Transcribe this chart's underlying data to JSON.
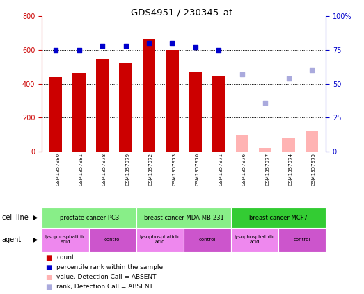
{
  "title": "GDS4951 / 230345_at",
  "samples": [
    "GSM1357980",
    "GSM1357981",
    "GSM1357978",
    "GSM1357979",
    "GSM1357972",
    "GSM1357973",
    "GSM1357970",
    "GSM1357971",
    "GSM1357976",
    "GSM1357977",
    "GSM1357974",
    "GSM1357975"
  ],
  "count_values": [
    440,
    463,
    545,
    520,
    667,
    600,
    473,
    447,
    null,
    null,
    null,
    null
  ],
  "count_absent": [
    null,
    null,
    null,
    null,
    null,
    null,
    null,
    null,
    100,
    20,
    80,
    120
  ],
  "rank_values": [
    75,
    75,
    78,
    78,
    80,
    80,
    77,
    75,
    null,
    null,
    null,
    null
  ],
  "rank_absent": [
    null,
    null,
    null,
    null,
    null,
    null,
    null,
    null,
    57,
    36,
    54,
    60
  ],
  "ylim_left": [
    0,
    800
  ],
  "ylim_right": [
    0,
    100
  ],
  "yticks_left": [
    0,
    200,
    400,
    600,
    800
  ],
  "yticks_right": [
    0,
    25,
    50,
    75,
    100
  ],
  "ytick_labels_right": [
    "0",
    "25",
    "50",
    "75",
    "100%"
  ],
  "bar_color_present": "#cc0000",
  "bar_color_absent": "#ffb3b3",
  "dot_color_present": "#0000cc",
  "dot_color_absent": "#aaaadd",
  "cell_line_groups": [
    {
      "label": "prostate cancer PC3",
      "start": 0,
      "end": 4,
      "color": "#88ee88"
    },
    {
      "label": "breast cancer MDA-MB-231",
      "start": 4,
      "end": 8,
      "color": "#88ee88"
    },
    {
      "label": "breast cancer MCF7",
      "start": 8,
      "end": 12,
      "color": "#33cc33"
    }
  ],
  "agent_groups": [
    {
      "label": "lysophosphatidic\nacid",
      "start": 0,
      "end": 2,
      "color": "#ee88ee"
    },
    {
      "label": "control",
      "start": 2,
      "end": 4,
      "color": "#cc55cc"
    },
    {
      "label": "lysophosphatidic\nacid",
      "start": 4,
      "end": 6,
      "color": "#ee88ee"
    },
    {
      "label": "control",
      "start": 6,
      "end": 8,
      "color": "#cc55cc"
    },
    {
      "label": "lysophosphatidic\nacid",
      "start": 8,
      "end": 10,
      "color": "#ee88ee"
    },
    {
      "label": "control",
      "start": 10,
      "end": 12,
      "color": "#cc55cc"
    }
  ],
  "legend_items": [
    {
      "label": "count",
      "color": "#cc0000"
    },
    {
      "label": "percentile rank within the sample",
      "color": "#0000cc"
    },
    {
      "label": "value, Detection Call = ABSENT",
      "color": "#ffb3b3"
    },
    {
      "label": "rank, Detection Call = ABSENT",
      "color": "#aaaadd"
    }
  ],
  "cell_line_label": "cell line",
  "agent_label": "agent",
  "bar_width": 0.55
}
